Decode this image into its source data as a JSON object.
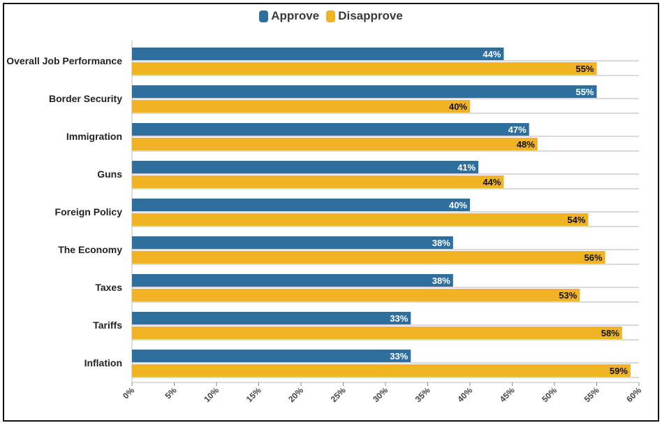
{
  "chart_data": {
    "type": "bar",
    "orientation": "horizontal",
    "title": "",
    "xlabel": "",
    "ylabel": "",
    "xlim": [
      0,
      60
    ],
    "ticks": [
      "0%",
      "5%",
      "10%",
      "15%",
      "20%",
      "25%",
      "30%",
      "35%",
      "40%",
      "45%",
      "50%",
      "55%",
      "60%"
    ],
    "tick_values": [
      0,
      5,
      10,
      15,
      20,
      25,
      30,
      35,
      40,
      45,
      50,
      55,
      60
    ],
    "categories": [
      "Overall Job Performance",
      "Border Security",
      "Immigration",
      "Guns",
      "Foreign Policy",
      "The Economy",
      "Taxes",
      "Tariffs",
      "Inflation"
    ],
    "series": [
      {
        "name": "Approve",
        "color": "#2e6f9e",
        "label_color": "#ffffff",
        "values": [
          44,
          55,
          47,
          41,
          40,
          38,
          38,
          33,
          33
        ],
        "labels": [
          "44%",
          "55%",
          "47%",
          "41%",
          "40%",
          "38%",
          "38%",
          "33%",
          "33%"
        ]
      },
      {
        "name": "Disapprove",
        "color": "#f0b323",
        "label_color": "#111111",
        "values": [
          55,
          40,
          48,
          44,
          54,
          56,
          53,
          58,
          59
        ],
        "labels": [
          "55%",
          "40%",
          "48%",
          "44%",
          "54%",
          "56%",
          "53%",
          "58%",
          "59%"
        ]
      }
    ],
    "legend_position": "top-center",
    "grid": true
  }
}
